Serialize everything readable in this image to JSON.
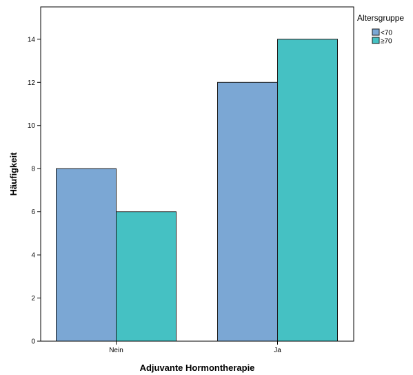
{
  "chart_data": {
    "type": "bar",
    "title": "",
    "xlabel": "Adjuvante Hormontherapie",
    "ylabel": "Häufigkeit",
    "categories": [
      "Nein",
      "Ja"
    ],
    "series": [
      {
        "name": "<70",
        "values": [
          8,
          12
        ],
        "color": "#7ba7d4"
      },
      {
        "name": "≥70",
        "values": [
          6,
          14
        ],
        "color": "#45c1c3"
      }
    ],
    "ylim": [
      0,
      15.5
    ],
    "yticks": [
      0,
      2,
      4,
      6,
      8,
      10,
      12,
      14
    ],
    "legend": {
      "title": "Altersgruppe",
      "position": "top-right"
    },
    "grid": false
  }
}
